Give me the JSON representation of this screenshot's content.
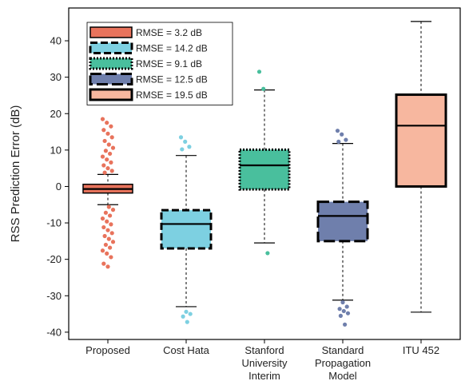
{
  "chart_data": {
    "type": "box",
    "ylabel": "RSS Prediction Error (dB)",
    "ylim": [
      -42,
      49
    ],
    "yticks": [
      40,
      30,
      20,
      10,
      0,
      -10,
      -20,
      -30,
      -40
    ],
    "grid": false,
    "legend_position": "top-left",
    "categories": [
      {
        "lines": [
          "Proposed"
        ]
      },
      {
        "lines": [
          "Cost Hata"
        ]
      },
      {
        "lines": [
          "Stanford",
          "University",
          "Interim"
        ]
      },
      {
        "lines": [
          "Standard",
          "Propagation",
          "Model"
        ]
      },
      {
        "lines": [
          "ITU 452"
        ]
      }
    ],
    "series": [
      {
        "legend": "RMSE = 3.2 dB",
        "color": "#e8735c",
        "border": "solid-thin",
        "whisker_low": -5,
        "q1": -1.8,
        "median": -0.7,
        "q3": 0.6,
        "whisker_high": 3.3,
        "outliers": [
          18.5,
          17.5,
          16.5,
          15.5,
          14.5,
          13.5,
          12.5,
          11.5,
          10.6,
          9.8,
          9,
          8.2,
          7.4,
          6.6,
          5.8,
          5,
          4.3,
          3.8,
          -5.6,
          -6.4,
          -7.2,
          -8,
          -8.8,
          -9.6,
          -10.4,
          -11.2,
          -12,
          -12.8,
          -13.6,
          -14.4,
          -15.2,
          -16,
          -16.8,
          -17.6,
          -18.4,
          -19.4,
          -21.2,
          -22
        ]
      },
      {
        "legend": "RMSE = 14.2 dB",
        "color": "#7dd0e1",
        "border": "dashed",
        "whisker_low": -33,
        "q1": -17,
        "median": -10.3,
        "q3": -6.5,
        "whisker_high": 8.5,
        "outliers": [
          13.5,
          12.3,
          10.9,
          10.2,
          -34.4,
          -35,
          -35.7,
          -37.2
        ]
      },
      {
        "legend": "RMSE = 9.1 dB",
        "color": "#49bf9d",
        "border": "dotted",
        "whisker_low": -15.5,
        "q1": -0.8,
        "median": 5.8,
        "q3": 10.1,
        "whisker_high": 26.5,
        "outliers": [
          31.5,
          26.8,
          -18.3
        ]
      },
      {
        "legend": "RMSE = 12.5 dB",
        "color": "#6f7fac",
        "border": "long-dashed",
        "whisker_low": -31.2,
        "q1": -15,
        "median": -8.1,
        "q3": -4.2,
        "whisker_high": 11.8,
        "outliers": [
          15.3,
          14.3,
          12.8,
          12.3,
          -31.8,
          -33,
          -33.6,
          -34.2,
          -34.8,
          -35.5,
          -37.9
        ]
      },
      {
        "legend": "RMSE = 19.5 dB",
        "color": "#f7b79f",
        "border": "solid-thick",
        "whisker_low": -34.5,
        "q1": 0,
        "median": 16.7,
        "q3": 25.2,
        "whisker_high": 45.3,
        "outliers": []
      }
    ]
  }
}
